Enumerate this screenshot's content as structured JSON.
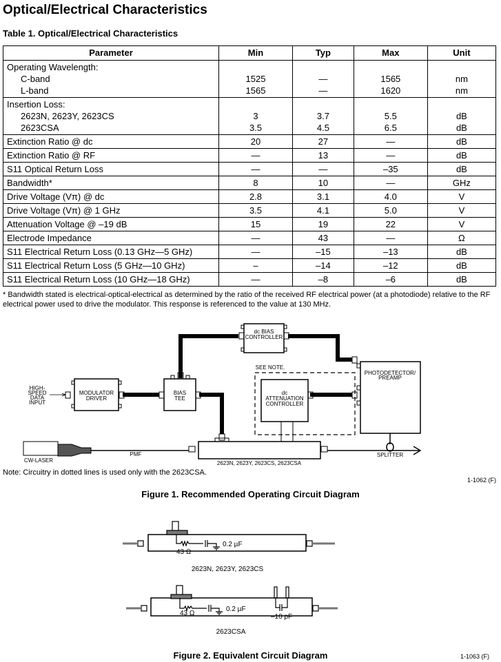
{
  "section_title": "Optical/Electrical Characteristics",
  "table": {
    "caption": "Table 1. Optical/Electrical Characteristics",
    "headers": [
      "Parameter",
      "Min",
      "Typ",
      "Max",
      "Unit"
    ],
    "groups": [
      {
        "label": "Operating Wavelength:",
        "rows": [
          {
            "param": "C-band",
            "min": "1525",
            "typ": "—",
            "max": "1565",
            "unit": "nm"
          },
          {
            "param": "L-band",
            "min": "1565",
            "typ": "—",
            "max": "1620",
            "unit": "nm"
          }
        ]
      },
      {
        "label": "Insertion Loss:",
        "rows": [
          {
            "param": "2623N, 2623Y, 2623CS",
            "min": "3",
            "typ": "3.7",
            "max": "5.5",
            "unit": "dB"
          },
          {
            "param": "2623CSA",
            "min": "3.5",
            "typ": "4.5",
            "max": "6.5",
            "unit": "dB"
          }
        ]
      }
    ],
    "rows": [
      {
        "param": "Extinction Ratio @ dc",
        "min": "20",
        "typ": "27",
        "max": "—",
        "unit": "dB"
      },
      {
        "param": "Extinction Ratio @ RF",
        "min": "—",
        "typ": "13",
        "max": "—",
        "unit": "dB"
      },
      {
        "param": "S11 Optical Return Loss",
        "min": "—",
        "typ": "—",
        "max": "–35",
        "unit": "dB"
      },
      {
        "param": "Bandwidth*",
        "min": "8",
        "typ": "10",
        "max": "—",
        "unit": "GHz"
      },
      {
        "param": "Drive Voltage (Vπ) @ dc",
        "min": "2.8",
        "typ": "3.1",
        "max": "4.0",
        "unit": "V"
      },
      {
        "param": "Drive Voltage (Vπ) @ 1 GHz",
        "min": "3.5",
        "typ": "4.1",
        "max": "5.0",
        "unit": "V"
      },
      {
        "param": "Attenuation Voltage @ –19 dB",
        "min": "15",
        "typ": "19",
        "max": "22",
        "unit": "V"
      },
      {
        "param": "Electrode Impedance",
        "min": "—",
        "typ": "43",
        "max": "—",
        "unit": "Ω"
      },
      {
        "param": "S11 Electrical Return Loss (0.13 GHz—5 GHz)",
        "min": "—",
        "typ": "–15",
        "max": "–13",
        "unit": "dB"
      },
      {
        "param": "S11 Electrical Return Loss (5 GHz—10 GHz)",
        "min": "–",
        "typ": "–14",
        "max": "–12",
        "unit": "dB"
      },
      {
        "param": "S11 Electrical Return Loss (10 GHz—18 GHz)",
        "min": "—",
        "typ": "–8",
        "max": "–6",
        "unit": "dB"
      }
    ],
    "footnote": "* Bandwidth stated is electrical-optical-electrical as determined by the ratio of the received RF electrical power (at a photodiode) relative to the RF electrical power used to drive the modulator. This response is referenced to the value at 130 MHz."
  },
  "figure1": {
    "labels": {
      "dc_bias_1": "dc BIAS",
      "dc_bias_2": "CONTROLLER",
      "photo_1": "PHOTODETECTOR/",
      "photo_2": "PREAMP",
      "see_note": "SEE NOTE.",
      "att_1": "dc",
      "att_2": "ATTENUATION",
      "att_3": "CONTROLLER",
      "input_1": "HIGH-",
      "input_2": "SPEED",
      "input_3": "DATA",
      "input_4": "INPUT",
      "mod_1": "MODULATOR",
      "mod_2": "DRIVER",
      "tee_1": "BIAS",
      "tee_2": "TEE",
      "laser": "CW-LASER",
      "pmf": "PMF",
      "device": "2623N, 2623Y, 2623CS, 2623CSA",
      "splitter": "SPLITTER"
    },
    "note": "Note: Circuitry in dotted lines is used only with the 2623CSA.",
    "id": "1-1062 (F)",
    "caption": "Figure 1. Recommended Operating Circuit Diagram"
  },
  "figure2": {
    "resistor": "43 Ω",
    "capacitor": "0.2 µF",
    "capacitor2": "–10 pF",
    "label_top": "2623N, 2623Y, 2623CS",
    "label_bottom": "2623CSA",
    "caption": "Figure 2. Equivalent Circuit Diagram",
    "id": "1-1063 (F)"
  }
}
